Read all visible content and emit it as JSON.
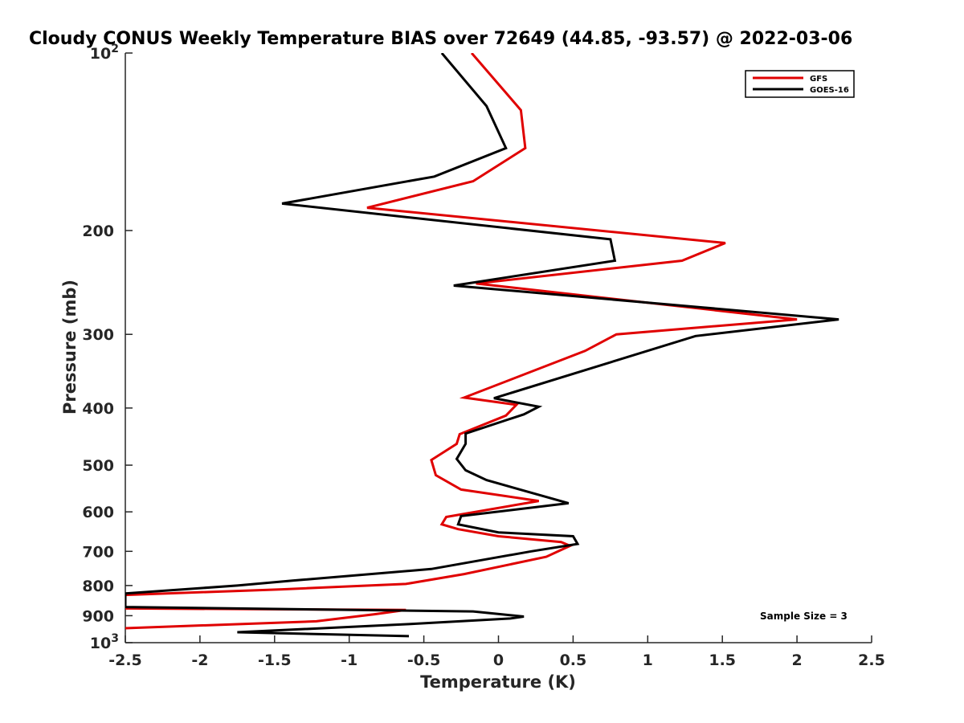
{
  "chart_data": {
    "type": "line",
    "title": "Cloudy CONUS Weekly Temperature BIAS over 72649 (44.85, -93.57) @ 2022-03-06",
    "xlabel": "Temperature (K)",
    "ylabel": "Pressure (mb)",
    "xlim": [
      -2.5,
      2.5
    ],
    "ylim": [
      100,
      1000
    ],
    "yscale": "log",
    "y_reversed": true,
    "x_ticks": [
      "-2.5",
      "-2",
      "-1.5",
      "-1",
      "-0.5",
      "0",
      "0.5",
      "1",
      "1.5",
      "2",
      "2.5"
    ],
    "x_tick_values": [
      -2.5,
      -2,
      -1.5,
      -1,
      -0.5,
      0,
      0.5,
      1,
      1.5,
      2,
      2.5
    ],
    "y_ticks": [
      {
        "value": 100,
        "base": "10",
        "exp": "2",
        "label": ""
      },
      {
        "value": 200,
        "label": "200"
      },
      {
        "value": 300,
        "label": "300"
      },
      {
        "value": 400,
        "label": "400"
      },
      {
        "value": 500,
        "label": "500"
      },
      {
        "value": 600,
        "label": "600"
      },
      {
        "value": 700,
        "label": "700"
      },
      {
        "value": 800,
        "label": "800"
      },
      {
        "value": 900,
        "label": "900"
      },
      {
        "value": 1000,
        "base": "10",
        "exp": "3",
        "label": ""
      }
    ],
    "grid": false,
    "legend_position": "top-right",
    "annotation": "Sample Size = 3",
    "series": [
      {
        "name": "GFS",
        "color": "#e00000",
        "x": [
          -0.18,
          0.15,
          0.18,
          -0.17,
          -0.88,
          1.52,
          1.23,
          -0.15,
          2.0,
          0.79,
          0.58,
          -0.23,
          0.12,
          0.05,
          -0.26,
          -0.28,
          -0.45,
          -0.42,
          -0.25,
          0.27,
          -0.35,
          -0.38,
          -0.27,
          0.0,
          0.42,
          0.48,
          0.32,
          -0.23,
          -0.62,
          -1.45,
          -2.5,
          -2.5,
          -0.62,
          -0.83,
          -1.22,
          -2.5
        ],
        "y": [
          100,
          125,
          145,
          165,
          183,
          210,
          225,
          246,
          283,
          300,
          320,
          384,
          395,
          412,
          443,
          460,
          490,
          520,
          550,
          575,
          612,
          630,
          642,
          660,
          675,
          685,
          715,
          765,
          795,
          812,
          830,
          875,
          880,
          895,
          920,
          945
        ]
      },
      {
        "name": "GOES-16",
        "color": "#000000",
        "x": [
          -0.38,
          -0.08,
          0.05,
          -0.43,
          -1.45,
          0.75,
          0.78,
          -0.3,
          2.28,
          1.32,
          -0.03,
          0.27,
          0.17,
          -0.22,
          -0.22,
          -0.28,
          -0.22,
          -0.08,
          0.47,
          -0.25,
          -0.27,
          0.0,
          0.5,
          0.53,
          0.22,
          -0.45,
          -1.38,
          -1.75,
          -2.5,
          -2.5,
          -0.17,
          0.17,
          0.08,
          -0.6,
          -1.75,
          -0.6
        ],
        "y": [
          100,
          123,
          145,
          162,
          180,
          207,
          225,
          248,
          283,
          302,
          385,
          398,
          410,
          442,
          460,
          488,
          510,
          530,
          580,
          610,
          630,
          650,
          660,
          680,
          700,
          750,
          785,
          800,
          825,
          870,
          885,
          903,
          910,
          930,
          960,
          975
        ]
      }
    ]
  }
}
